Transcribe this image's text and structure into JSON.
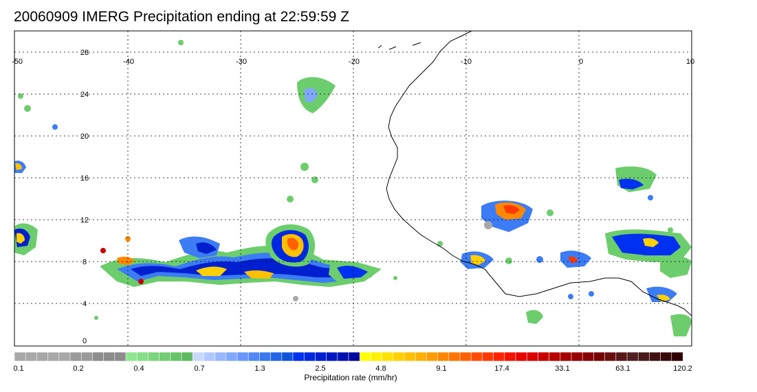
{
  "title": "20060909 IMERG Precipitation ending at 22:59:59 Z",
  "map": {
    "lon_range": [
      -50,
      10
    ],
    "lat_range": [
      -0.5,
      30
    ],
    "lon_ticks": [
      "-50",
      "-40",
      "-30",
      "-20",
      "-10",
      "0",
      "10"
    ],
    "lat_ticks": [
      "28",
      "24",
      "20",
      "16",
      "12",
      "8",
      "4",
      "0"
    ]
  },
  "colorbar": {
    "label": "Precipitation rate (mm/hr)",
    "tick_labels": [
      "0.1",
      "0.2",
      "0.4",
      "0.7",
      "1.3",
      "2.5",
      "4.8",
      "9.1",
      "17.4",
      "33.1",
      "63.1",
      "120.2"
    ],
    "colors": [
      "#a8a8a8",
      "#a8a8a8",
      "#a8a8a8",
      "#a8a8a8",
      "#a8a8a8",
      "#9a9a9a",
      "#9a9a9a",
      "#8c8c8c",
      "#8c8c8c",
      "#8c8c8c",
      "#90e690",
      "#86de86",
      "#7cd57c",
      "#72cc72",
      "#68c368",
      "#5fba5f",
      "#c8d8ff",
      "#b0c8ff",
      "#98b8ff",
      "#80a8ff",
      "#6898ff",
      "#5088f8",
      "#3878f0",
      "#2066e8",
      "#1054dc",
      "#0030f0",
      "#0028e0",
      "#0020d0",
      "#0018c0",
      "#0010b0",
      "#0008a0",
      "#ffff00",
      "#fff000",
      "#ffe000",
      "#ffd000",
      "#ffc000",
      "#ffb000",
      "#ff9c00",
      "#ff8800",
      "#ff7400",
      "#ff6000",
      "#ff4c00",
      "#ff3800",
      "#ff2200",
      "#f51000",
      "#e80000",
      "#d80000",
      "#c80000",
      "#b80000",
      "#a80000",
      "#980000",
      "#880000",
      "#780000",
      "#681010",
      "#581818",
      "#502020",
      "#481818",
      "#401010",
      "#380808",
      "#300000"
    ]
  }
}
